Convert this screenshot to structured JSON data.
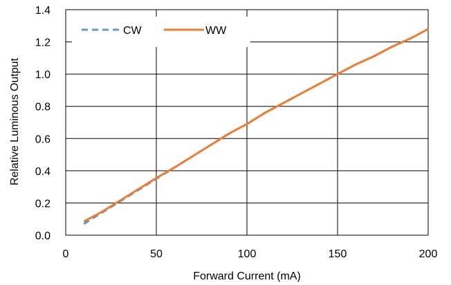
{
  "chart_data": {
    "type": "line",
    "title": "",
    "xlabel": "Forward Current (mA)",
    "ylabel": "Relative Luminous Output",
    "xlim": [
      0,
      200
    ],
    "ylim": [
      0,
      1.4
    ],
    "xticks": [
      0,
      50,
      100,
      150,
      200
    ],
    "yticks": [
      0.0,
      0.2,
      0.4,
      0.6,
      0.8,
      1.0,
      1.2,
      1.4
    ],
    "xtick_labels": [
      "0",
      "50",
      "100",
      "150",
      "200"
    ],
    "ytick_labels": [
      "0.0",
      "0.2",
      "0.4",
      "0.6",
      "0.8",
      "1.0",
      "1.2",
      "1.4"
    ],
    "grid": true,
    "legend_position": "top-left",
    "series": [
      {
        "name": "CW",
        "color": "#5B9BD5",
        "style": "dashed",
        "x": [
          10,
          20,
          30,
          40,
          50,
          60,
          70,
          80,
          90,
          100,
          110,
          120,
          130,
          140,
          150,
          160,
          170,
          180,
          190,
          200
        ],
        "y": [
          0.07,
          0.14,
          0.21,
          0.28,
          0.35,
          0.42,
          0.49,
          0.56,
          0.63,
          0.69,
          0.76,
          0.82,
          0.88,
          0.94,
          1.0,
          1.06,
          1.11,
          1.17,
          1.22,
          1.28
        ]
      },
      {
        "name": "WW",
        "color": "#ED7D31",
        "style": "solid",
        "x": [
          10,
          20,
          30,
          40,
          50,
          60,
          70,
          80,
          90,
          100,
          110,
          120,
          130,
          140,
          150,
          160,
          170,
          180,
          190,
          200
        ],
        "y": [
          0.085,
          0.145,
          0.215,
          0.285,
          0.355,
          0.42,
          0.49,
          0.56,
          0.63,
          0.69,
          0.76,
          0.82,
          0.88,
          0.94,
          1.0,
          1.06,
          1.11,
          1.17,
          1.22,
          1.28
        ]
      }
    ]
  }
}
